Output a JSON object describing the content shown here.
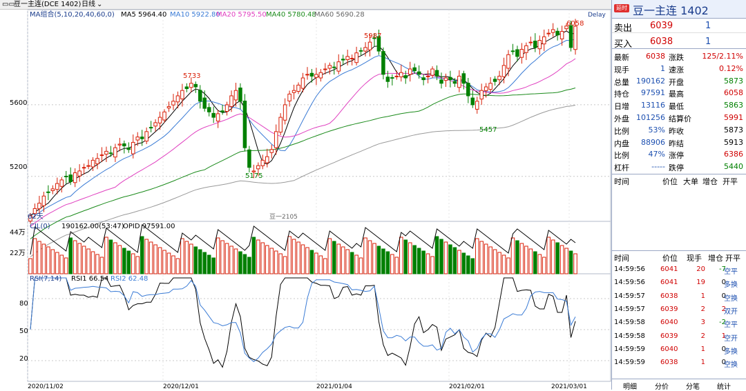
{
  "window": {
    "title": "豆一主连(DCE 1402)",
    "period": "日线"
  },
  "legend": {
    "group": "MA组合(5,10,20,40,60,0)",
    "ma5": "MA5 5964.40",
    "ma10": "MA10 5922.80",
    "ma20": "MA20 5795.50",
    "ma40": "MA40 5780.48",
    "ma60": "MA60 5690.28",
    "delay": "Delay",
    "vol": "CJL(0)",
    "vol_values": "190162.00(53:47)",
    "opid": "OPID 97591.00",
    "rsi": "RSI(7,14)",
    "rsi1": "RSI1 66.54",
    "rsi2": "RSI2 62.48"
  },
  "colors": {
    "up": "#d81e06",
    "down": "#008000",
    "ma5": "#000000",
    "ma10": "#3a7bd5",
    "ma20": "#e040c0",
    "ma40": "#1a8a1a",
    "ma60": "#999999",
    "grid": "#c8c8c8"
  },
  "chart_data": [
    {
      "type": "candlestick",
      "series": [
        {
          "name": "MA5"
        },
        {
          "name": "MA10"
        },
        {
          "name": "MA20"
        },
        {
          "name": "MA40"
        },
        {
          "name": "MA60"
        }
      ],
      "ylim": [
        4960,
        6120
      ],
      "yticks": [
        "5600",
        "5200"
      ],
      "xticks": [
        "2020/11/02",
        "2020/12/01",
        "2021/01/04",
        "2021/02/01",
        "2021/03/01"
      ],
      "annotations": [
        "5733",
        "5987",
        "6058",
        "5175",
        "5457",
        "62天",
        "豆一2105"
      ],
      "closes": [
        4980,
        5020,
        5050,
        5090,
        5110,
        5130,
        5160,
        5180,
        5200,
        5170,
        5220,
        5230,
        5250,
        5260,
        5290,
        5300,
        5320,
        5340,
        5330,
        5360,
        5380,
        5370,
        5350,
        5390,
        5420,
        5410,
        5450,
        5470,
        5500,
        5530,
        5560,
        5590,
        5620,
        5650,
        5680,
        5690,
        5720,
        5700,
        5620,
        5580,
        5560,
        5530,
        5550,
        5560,
        5600,
        5650,
        5680,
        5620,
        5360,
        5250,
        5230,
        5260,
        5290,
        5310,
        5350,
        5450,
        5530,
        5600,
        5660,
        5680,
        5710,
        5750,
        5770,
        5760,
        5770,
        5780,
        5800,
        5820,
        5810,
        5840,
        5850,
        5870,
        5860,
        5890,
        5900,
        5920,
        5950,
        5970,
        5900,
        5770,
        5730,
        5750,
        5760,
        5780,
        5750,
        5800,
        5790,
        5770,
        5740,
        5760,
        5800,
        5760,
        5720,
        5750,
        5740,
        5720,
        5760,
        5720,
        5650,
        5600,
        5620,
        5680,
        5700,
        5720,
        5730,
        5760,
        5820,
        5880,
        5900,
        5870,
        5910,
        5930,
        5950,
        5920,
        5960,
        5980,
        6000,
        6020,
        5990,
        6010,
        6040,
        5920,
        6039
      ],
      "volume_ticks": [
        "44万",
        "22万"
      ],
      "rsi_ticks": [
        "80",
        "50",
        "20"
      ]
    }
  ],
  "panel": {
    "badge": "延时",
    "name": "豆一主连",
    "code": "1402",
    "sell_label": "卖出",
    "sell_price": "6039",
    "sell_vol": "1",
    "buy_label": "买入",
    "buy_price": "6038",
    "buy_vol": "1",
    "stats": [
      {
        "l1": "最新",
        "v1": "6038",
        "c1": "red",
        "l2": "涨跌",
        "v2": "125/2.11%",
        "c2": "red"
      },
      {
        "l1": "现手",
        "v1": "1",
        "c1": "blue",
        "l2": "速涨",
        "v2": "0.12%",
        "c2": "red"
      },
      {
        "l1": "总量",
        "v1": "190162",
        "c1": "blue",
        "l2": "开盘",
        "v2": "5873",
        "c2": "green"
      },
      {
        "l1": "持仓",
        "v1": "97591",
        "c1": "blue",
        "l2": "最高",
        "v2": "6058",
        "c2": "red"
      },
      {
        "l1": "日增",
        "v1": "13116",
        "c1": "blue",
        "l2": "最低",
        "v2": "5863",
        "c2": "green"
      },
      {
        "l1": "外盘",
        "v1": "101256",
        "c1": "blue",
        "l2": "结算价",
        "v2": "5991",
        "c2": "red"
      },
      {
        "l1": "比例",
        "v1": "53%",
        "c1": "blue",
        "l2": "昨收",
        "v2": "5873",
        "c2": "dk"
      },
      {
        "l1": "内盘",
        "v1": "88906",
        "c1": "blue",
        "l2": "昨结",
        "v2": "5913",
        "c2": "dk"
      },
      {
        "l1": "比例",
        "v1": "47%",
        "c1": "blue",
        "l2": "涨停",
        "v2": "6386",
        "c2": "red"
      },
      {
        "l1": "杠杆",
        "v1": "-----",
        "c1": "blue",
        "l2": "跌停",
        "v2": "5440",
        "c2": "green"
      }
    ],
    "dj_header": {
      "time": "时间",
      "price": "价位",
      "big": "大单",
      "inc": "增仓",
      "open": "开平"
    },
    "tick_header": {
      "time": "时间",
      "price": "价位",
      "hand": "现手",
      "inc": "增仓",
      "open": "开平"
    },
    "ticks": [
      {
        "time": "14:59:56",
        "price": "6041",
        "hand": "20",
        "inc": "-7",
        "open": "空平"
      },
      {
        "time": "14:59:56",
        "price": "6041",
        "hand": "19",
        "inc": "0",
        "open": "多换"
      },
      {
        "time": "14:59:57",
        "price": "6038",
        "hand": "1",
        "inc": "0",
        "open": "空换"
      },
      {
        "time": "14:59:57",
        "price": "6039",
        "hand": "2",
        "inc": "2",
        "open": "双开"
      },
      {
        "time": "14:59:58",
        "price": "6040",
        "hand": "3",
        "inc": "-2",
        "open": "空平"
      },
      {
        "time": "14:59:58",
        "price": "6039",
        "hand": "2",
        "inc": "1",
        "open": "空开"
      },
      {
        "time": "14:59:59",
        "price": "6040",
        "hand": "1",
        "inc": "0",
        "open": "多换"
      },
      {
        "time": "14:59:59",
        "price": "6038",
        "hand": "1",
        "inc": "0",
        "open": "空换"
      }
    ],
    "tabs": [
      "明细",
      "分价",
      "分笔",
      "统计"
    ]
  }
}
